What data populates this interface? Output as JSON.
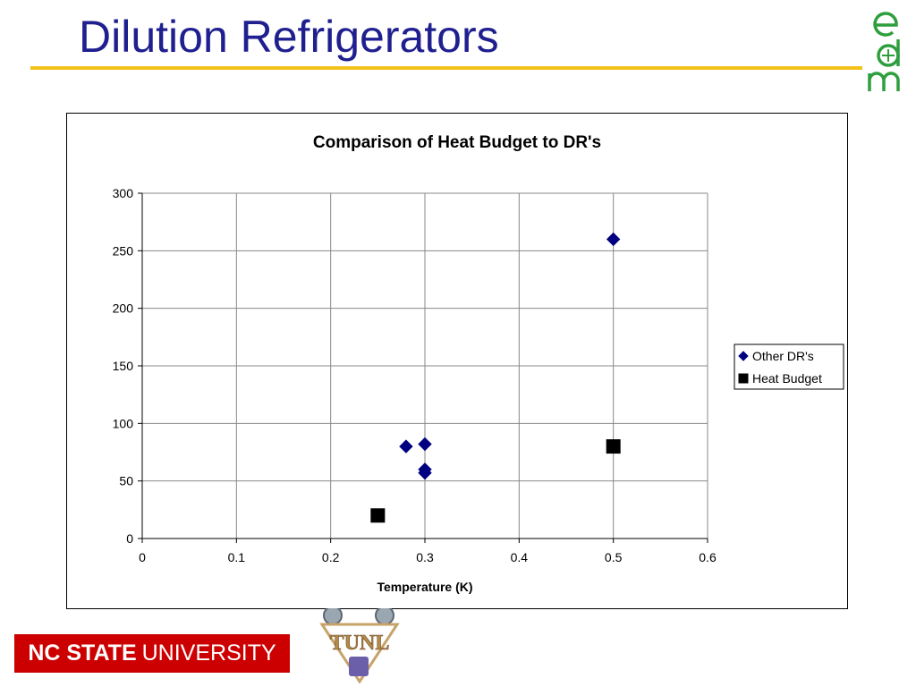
{
  "slide": {
    "title": "Dilution Refrigerators",
    "footer_strong": "NC STATE",
    "footer_rest": "UNIVERSITY",
    "logo_text": "TUNL",
    "colors": {
      "title": "#1f1f8f",
      "rule": "#f2c21b",
      "footer_bg": "#cc0000",
      "logo_green": "#2e9e3e"
    }
  },
  "chart_data": {
    "type": "scatter",
    "title": "Comparison of Heat Budget to DR's",
    "xlabel": "Temperature (K)",
    "ylabel": "",
    "xlim": [
      0,
      0.6
    ],
    "ylim": [
      0,
      300
    ],
    "xticks": [
      "0",
      "0.1",
      "0.2",
      "0.3",
      "0.4",
      "0.5",
      "0.6"
    ],
    "yticks": [
      "0",
      "50",
      "100",
      "150",
      "200",
      "250",
      "300"
    ],
    "grid": true,
    "legend_position": "right",
    "series": [
      {
        "name": "Other DR's",
        "marker": "diamond",
        "color": "#000080",
        "points": [
          [
            0.28,
            80
          ],
          [
            0.3,
            82
          ],
          [
            0.3,
            60
          ],
          [
            0.3,
            57
          ],
          [
            0.5,
            260
          ]
        ]
      },
      {
        "name": "Heat Budget",
        "marker": "square",
        "color": "#000000",
        "points": [
          [
            0.25,
            20
          ],
          [
            0.5,
            80
          ]
        ]
      }
    ]
  }
}
